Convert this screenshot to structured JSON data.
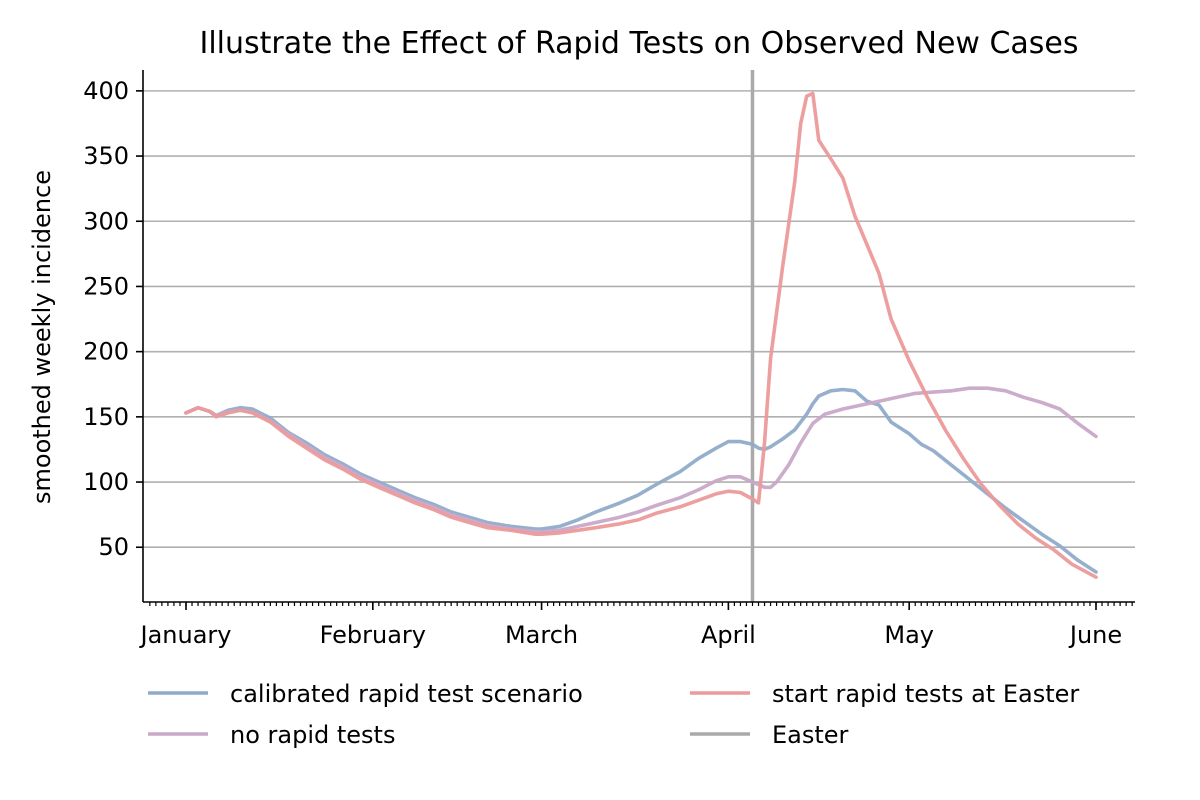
{
  "chart_data": {
    "type": "line",
    "title": "Illustrate the Effect of Rapid Tests on Observed New Cases",
    "xlabel": "",
    "ylabel": "smoothed weekly incidence",
    "x_axis": {
      "type": "date",
      "range": [
        "2021-01-01",
        "2021-06-01"
      ],
      "ticks": [
        {
          "date": "2021-01-01",
          "label": "January"
        },
        {
          "date": "2021-02-01",
          "label": "February"
        },
        {
          "date": "2021-03-01",
          "label": "March"
        },
        {
          "date": "2021-04-01",
          "label": "April"
        },
        {
          "date": "2021-05-01",
          "label": "May"
        },
        {
          "date": "2021-06-01",
          "label": "June"
        }
      ]
    },
    "ylim": [
      8,
      416
    ],
    "yticks": [
      50,
      100,
      150,
      200,
      250,
      300,
      350,
      400
    ],
    "grid": {
      "y": true,
      "x": false
    },
    "legend_placement": "bottom",
    "series": [
      {
        "name": "calibrated rapid test scenario",
        "color": "#8fabc9",
        "points": [
          [
            "2021-01-01",
            153
          ],
          [
            "2021-01-03",
            157
          ],
          [
            "2021-01-05",
            154
          ],
          [
            "2021-01-06",
            151
          ],
          [
            "2021-01-08",
            155
          ],
          [
            "2021-01-10",
            157
          ],
          [
            "2021-01-12",
            156
          ],
          [
            "2021-01-15",
            149
          ],
          [
            "2021-01-18",
            138
          ],
          [
            "2021-01-21",
            130
          ],
          [
            "2021-01-24",
            121
          ],
          [
            "2021-01-27",
            114
          ],
          [
            "2021-01-30",
            106
          ],
          [
            "2021-02-02",
            100
          ],
          [
            "2021-02-05",
            94
          ],
          [
            "2021-02-08",
            88
          ],
          [
            "2021-02-11",
            83
          ],
          [
            "2021-02-14",
            77
          ],
          [
            "2021-02-17",
            73
          ],
          [
            "2021-02-20",
            69
          ],
          [
            "2021-02-24",
            66
          ],
          [
            "2021-02-28",
            64
          ],
          [
            "2021-03-01",
            64
          ],
          [
            "2021-03-04",
            66
          ],
          [
            "2021-03-07",
            71
          ],
          [
            "2021-03-10",
            77
          ],
          [
            "2021-03-14",
            84
          ],
          [
            "2021-03-17",
            90
          ],
          [
            "2021-03-20",
            98
          ],
          [
            "2021-03-24",
            108
          ],
          [
            "2021-03-27",
            118
          ],
          [
            "2021-03-30",
            126
          ],
          [
            "2021-04-01",
            131
          ],
          [
            "2021-04-03",
            131
          ],
          [
            "2021-04-05",
            129
          ],
          [
            "2021-04-06",
            126
          ],
          [
            "2021-04-07",
            125
          ],
          [
            "2021-04-08",
            127
          ],
          [
            "2021-04-10",
            133
          ],
          [
            "2021-04-12",
            140
          ],
          [
            "2021-04-14",
            152
          ],
          [
            "2021-04-15",
            160
          ],
          [
            "2021-04-16",
            166
          ],
          [
            "2021-04-18",
            170
          ],
          [
            "2021-04-20",
            171
          ],
          [
            "2021-04-22",
            170
          ],
          [
            "2021-04-24",
            162
          ],
          [
            "2021-04-26",
            159
          ],
          [
            "2021-04-28",
            146
          ],
          [
            "2021-05-01",
            137
          ],
          [
            "2021-05-03",
            129
          ],
          [
            "2021-05-05",
            124
          ],
          [
            "2021-05-08",
            113
          ],
          [
            "2021-05-11",
            102
          ],
          [
            "2021-05-14",
            91
          ],
          [
            "2021-05-17",
            80
          ],
          [
            "2021-05-20",
            70
          ],
          [
            "2021-05-23",
            60
          ],
          [
            "2021-05-26",
            51
          ],
          [
            "2021-05-29",
            40
          ],
          [
            "2021-06-01",
            31
          ]
        ]
      },
      {
        "name": "no rapid tests",
        "color": "#c9a8c8",
        "points": [
          [
            "2021-01-01",
            153
          ],
          [
            "2021-01-03",
            157
          ],
          [
            "2021-01-05",
            154
          ],
          [
            "2021-01-06",
            151
          ],
          [
            "2021-01-08",
            154
          ],
          [
            "2021-01-10",
            155
          ],
          [
            "2021-01-12",
            154
          ],
          [
            "2021-01-15",
            147
          ],
          [
            "2021-01-18",
            137
          ],
          [
            "2021-01-21",
            128
          ],
          [
            "2021-01-24",
            119
          ],
          [
            "2021-01-27",
            112
          ],
          [
            "2021-01-30",
            104
          ],
          [
            "2021-02-02",
            98
          ],
          [
            "2021-02-05",
            92
          ],
          [
            "2021-02-08",
            86
          ],
          [
            "2021-02-11",
            81
          ],
          [
            "2021-02-14",
            75
          ],
          [
            "2021-02-17",
            71
          ],
          [
            "2021-02-20",
            67
          ],
          [
            "2021-02-24",
            64
          ],
          [
            "2021-02-28",
            62
          ],
          [
            "2021-03-01",
            62
          ],
          [
            "2021-03-04",
            63
          ],
          [
            "2021-03-07",
            66
          ],
          [
            "2021-03-10",
            69
          ],
          [
            "2021-03-14",
            73
          ],
          [
            "2021-03-17",
            77
          ],
          [
            "2021-03-20",
            82
          ],
          [
            "2021-03-24",
            88
          ],
          [
            "2021-03-27",
            94
          ],
          [
            "2021-03-30",
            101
          ],
          [
            "2021-04-01",
            104
          ],
          [
            "2021-04-03",
            104
          ],
          [
            "2021-04-05",
            100
          ],
          [
            "2021-04-07",
            96
          ],
          [
            "2021-04-08",
            96
          ],
          [
            "2021-04-09",
            100
          ],
          [
            "2021-04-11",
            113
          ],
          [
            "2021-04-13",
            130
          ],
          [
            "2021-04-15",
            145
          ],
          [
            "2021-04-17",
            152
          ],
          [
            "2021-04-20",
            156
          ],
          [
            "2021-04-23",
            159
          ],
          [
            "2021-04-26",
            162
          ],
          [
            "2021-04-29",
            165
          ],
          [
            "2021-05-02",
            168
          ],
          [
            "2021-05-05",
            169
          ],
          [
            "2021-05-08",
            170
          ],
          [
            "2021-05-11",
            172
          ],
          [
            "2021-05-14",
            172
          ],
          [
            "2021-05-17",
            170
          ],
          [
            "2021-05-20",
            165
          ],
          [
            "2021-05-23",
            161
          ],
          [
            "2021-05-26",
            156
          ],
          [
            "2021-05-29",
            145
          ],
          [
            "2021-06-01",
            135
          ]
        ]
      },
      {
        "name": "start rapid tests at Easter",
        "color": "#ec9a9a",
        "points": [
          [
            "2021-01-01",
            153
          ],
          [
            "2021-01-03",
            157
          ],
          [
            "2021-01-05",
            154
          ],
          [
            "2021-01-06",
            150
          ],
          [
            "2021-01-08",
            153
          ],
          [
            "2021-01-10",
            155
          ],
          [
            "2021-01-12",
            153
          ],
          [
            "2021-01-15",
            146
          ],
          [
            "2021-01-18",
            135
          ],
          [
            "2021-01-21",
            126
          ],
          [
            "2021-01-24",
            117
          ],
          [
            "2021-01-27",
            110
          ],
          [
            "2021-01-30",
            102
          ],
          [
            "2021-02-02",
            96
          ],
          [
            "2021-02-05",
            90
          ],
          [
            "2021-02-08",
            84
          ],
          [
            "2021-02-11",
            79
          ],
          [
            "2021-02-14",
            73
          ],
          [
            "2021-02-17",
            69
          ],
          [
            "2021-02-20",
            65
          ],
          [
            "2021-02-24",
            63
          ],
          [
            "2021-02-28",
            60
          ],
          [
            "2021-03-01",
            60
          ],
          [
            "2021-03-04",
            61
          ],
          [
            "2021-03-07",
            63
          ],
          [
            "2021-03-10",
            65
          ],
          [
            "2021-03-14",
            68
          ],
          [
            "2021-03-17",
            71
          ],
          [
            "2021-03-20",
            76
          ],
          [
            "2021-03-24",
            81
          ],
          [
            "2021-03-27",
            86
          ],
          [
            "2021-03-30",
            91
          ],
          [
            "2021-04-01",
            93
          ],
          [
            "2021-04-03",
            92
          ],
          [
            "2021-04-05",
            87
          ],
          [
            "2021-04-06",
            84
          ],
          [
            "2021-04-07",
            130
          ],
          [
            "2021-04-08",
            195
          ],
          [
            "2021-04-10",
            265
          ],
          [
            "2021-04-12",
            330
          ],
          [
            "2021-04-13",
            375
          ],
          [
            "2021-04-14",
            396
          ],
          [
            "2021-04-15",
            398
          ],
          [
            "2021-04-16",
            362
          ],
          [
            "2021-04-18",
            348
          ],
          [
            "2021-04-20",
            333
          ],
          [
            "2021-04-22",
            304
          ],
          [
            "2021-04-24",
            282
          ],
          [
            "2021-04-26",
            260
          ],
          [
            "2021-04-28",
            225
          ],
          [
            "2021-05-01",
            193
          ],
          [
            "2021-05-04",
            165
          ],
          [
            "2021-05-07",
            140
          ],
          [
            "2021-05-10",
            118
          ],
          [
            "2021-05-13",
            98
          ],
          [
            "2021-05-16",
            82
          ],
          [
            "2021-05-19",
            68
          ],
          [
            "2021-05-22",
            57
          ],
          [
            "2021-05-25",
            48
          ],
          [
            "2021-05-28",
            37
          ],
          [
            "2021-06-01",
            27
          ]
        ]
      }
    ],
    "vlines": [
      {
        "name": "Easter",
        "date": "2021-04-05",
        "color": "#aaaaaa"
      }
    ],
    "legend": [
      {
        "label": "calibrated rapid test scenario",
        "color": "#8fabc9"
      },
      {
        "label": "start rapid tests at Easter",
        "color": "#ec9a9a"
      },
      {
        "label": "no rapid tests",
        "color": "#c9a8c8"
      },
      {
        "label": "Easter",
        "color": "#aaaaaa"
      }
    ]
  }
}
